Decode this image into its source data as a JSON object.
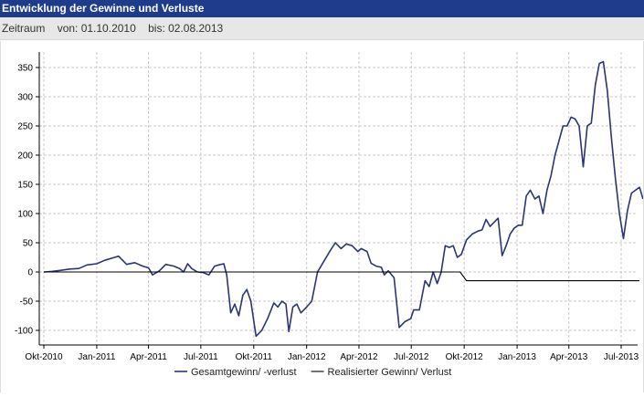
{
  "header": {
    "title": "Entwicklung der Gewinne und Verluste",
    "period_label": "Zeitraum",
    "from_text": "von: 01.10.2010",
    "to_text": "bis: 02.08.2013"
  },
  "colors": {
    "title_bar": "#1f3b8c",
    "series_total": "#2b3575",
    "series_realized": "#000000",
    "grid": "#c8c8c8"
  },
  "chart_data": {
    "type": "line",
    "title": "Entwicklung der Gewinne und Verluste",
    "xlabel": "",
    "ylabel": "",
    "ylim": [
      -115,
      375
    ],
    "xlim": [
      "2010-10-01",
      "2013-08-02"
    ],
    "yticks": [
      350,
      300,
      250,
      200,
      150,
      100,
      50,
      0,
      -50,
      -100
    ],
    "xticks": [
      {
        "label": "Okt-2010",
        "date": "2010-10-01"
      },
      {
        "label": "Jan-2011",
        "date": "2011-01-01"
      },
      {
        "label": "Apr-2011",
        "date": "2011-04-01"
      },
      {
        "label": "Jul-2011",
        "date": "2011-07-01"
      },
      {
        "label": "Okt-2011",
        "date": "2011-10-01"
      },
      {
        "label": "Jan-2012",
        "date": "2012-01-01"
      },
      {
        "label": "Apr-2012",
        "date": "2012-04-01"
      },
      {
        "label": "Jul-2012",
        "date": "2012-07-01"
      },
      {
        "label": "Okt-2012",
        "date": "2012-10-01"
      },
      {
        "label": "Jan-2013",
        "date": "2013-01-01"
      },
      {
        "label": "Apr-2013",
        "date": "2013-04-01"
      },
      {
        "label": "Jul-2013",
        "date": "2013-07-01"
      }
    ],
    "grid": true,
    "legend_position": "bottom-center",
    "series": [
      {
        "name": "Gesamtgewinn/ -verlust",
        "color": "#2b3575",
        "points": [
          [
            "2010-10-01",
            0
          ],
          [
            "2010-10-15",
            1
          ],
          [
            "2010-11-01",
            3
          ],
          [
            "2010-11-15",
            5
          ],
          [
            "2010-12-01",
            6
          ],
          [
            "2010-12-15",
            12
          ],
          [
            "2011-01-01",
            14
          ],
          [
            "2011-01-15",
            20
          ],
          [
            "2011-02-01",
            25
          ],
          [
            "2011-02-08",
            27
          ],
          [
            "2011-02-22",
            13
          ],
          [
            "2011-03-08",
            16
          ],
          [
            "2011-03-22",
            10
          ],
          [
            "2011-04-01",
            7
          ],
          [
            "2011-04-08",
            -5
          ],
          [
            "2011-04-20",
            2
          ],
          [
            "2011-05-01",
            13
          ],
          [
            "2011-05-15",
            10
          ],
          [
            "2011-05-25",
            6
          ],
          [
            "2011-06-01",
            0
          ],
          [
            "2011-06-08",
            14
          ],
          [
            "2011-06-15",
            6
          ],
          [
            "2011-06-25",
            0
          ],
          [
            "2011-07-05",
            -1
          ],
          [
            "2011-07-15",
            -5
          ],
          [
            "2011-07-25",
            10
          ],
          [
            "2011-08-01",
            12
          ],
          [
            "2011-08-10",
            14
          ],
          [
            "2011-08-15",
            -5
          ],
          [
            "2011-08-22",
            -70
          ],
          [
            "2011-08-29",
            -55
          ],
          [
            "2011-09-05",
            -75
          ],
          [
            "2011-09-12",
            -40
          ],
          [
            "2011-09-19",
            -30
          ],
          [
            "2011-09-26",
            -50
          ],
          [
            "2011-10-05",
            -110
          ],
          [
            "2011-10-15",
            -100
          ],
          [
            "2011-10-25",
            -80
          ],
          [
            "2011-11-05",
            -53
          ],
          [
            "2011-11-12",
            -60
          ],
          [
            "2011-11-19",
            -50
          ],
          [
            "2011-11-26",
            -55
          ],
          [
            "2011-12-01",
            -102
          ],
          [
            "2011-12-08",
            -60
          ],
          [
            "2011-12-15",
            -55
          ],
          [
            "2011-12-22",
            -70
          ],
          [
            "2012-01-01",
            -60
          ],
          [
            "2012-01-10",
            -50
          ],
          [
            "2012-01-20",
            0
          ],
          [
            "2012-02-01",
            20
          ],
          [
            "2012-02-10",
            35
          ],
          [
            "2012-02-20",
            50
          ],
          [
            "2012-03-01",
            40
          ],
          [
            "2012-03-10",
            48
          ],
          [
            "2012-03-20",
            45
          ],
          [
            "2012-03-30",
            35
          ],
          [
            "2012-04-05",
            40
          ],
          [
            "2012-04-15",
            35
          ],
          [
            "2012-04-22",
            15
          ],
          [
            "2012-05-01",
            10
          ],
          [
            "2012-05-10",
            8
          ],
          [
            "2012-05-15",
            -5
          ],
          [
            "2012-05-22",
            2
          ],
          [
            "2012-06-01",
            -10
          ],
          [
            "2012-06-10",
            -95
          ],
          [
            "2012-06-20",
            -85
          ],
          [
            "2012-06-30",
            -80
          ],
          [
            "2012-07-05",
            -65
          ],
          [
            "2012-07-15",
            -65
          ],
          [
            "2012-07-25",
            -15
          ],
          [
            "2012-08-01",
            -25
          ],
          [
            "2012-08-08",
            0
          ],
          [
            "2012-08-15",
            -20
          ],
          [
            "2012-08-22",
            0
          ],
          [
            "2012-08-29",
            45
          ],
          [
            "2012-09-05",
            42
          ],
          [
            "2012-09-12",
            45
          ],
          [
            "2012-09-19",
            25
          ],
          [
            "2012-09-26",
            30
          ],
          [
            "2012-10-05",
            55
          ],
          [
            "2012-10-15",
            65
          ],
          [
            "2012-10-25",
            70
          ],
          [
            "2012-11-01",
            72
          ],
          [
            "2012-11-08",
            90
          ],
          [
            "2012-11-15",
            78
          ],
          [
            "2012-11-22",
            85
          ],
          [
            "2012-11-29",
            92
          ],
          [
            "2012-12-06",
            28
          ],
          [
            "2012-12-13",
            45
          ],
          [
            "2012-12-20",
            65
          ],
          [
            "2012-12-27",
            75
          ],
          [
            "2013-01-03",
            80
          ],
          [
            "2013-01-10",
            80
          ],
          [
            "2013-01-17",
            130
          ],
          [
            "2013-01-24",
            140
          ],
          [
            "2013-02-01",
            125
          ],
          [
            "2013-02-08",
            130
          ],
          [
            "2013-02-15",
            100
          ],
          [
            "2013-02-22",
            140
          ],
          [
            "2013-03-01",
            165
          ],
          [
            "2013-03-08",
            200
          ],
          [
            "2013-03-15",
            225
          ],
          [
            "2013-03-22",
            250
          ],
          [
            "2013-03-29",
            250
          ],
          [
            "2013-04-05",
            265
          ],
          [
            "2013-04-12",
            262
          ],
          [
            "2013-04-19",
            250
          ],
          [
            "2013-04-26",
            180
          ],
          [
            "2013-05-03",
            250
          ],
          [
            "2013-05-10",
            255
          ],
          [
            "2013-05-17",
            320
          ],
          [
            "2013-05-24",
            357
          ],
          [
            "2013-05-31",
            360
          ],
          [
            "2013-06-07",
            310
          ],
          [
            "2013-06-14",
            230
          ],
          [
            "2013-06-21",
            160
          ],
          [
            "2013-06-28",
            100
          ],
          [
            "2013-07-05",
            57
          ],
          [
            "2013-07-12",
            105
          ],
          [
            "2013-07-19",
            135
          ],
          [
            "2013-07-26",
            140
          ],
          [
            "2013-08-02",
            145
          ],
          [
            "2013-08-08",
            125
          ]
        ]
      },
      {
        "name": "Realisierter Gewinn/ Verlust",
        "color": "#000000",
        "points": [
          [
            "2010-10-01",
            0
          ],
          [
            "2012-09-24",
            0
          ],
          [
            "2012-10-05",
            -15
          ],
          [
            "2013-08-02",
            -15
          ]
        ]
      }
    ]
  }
}
